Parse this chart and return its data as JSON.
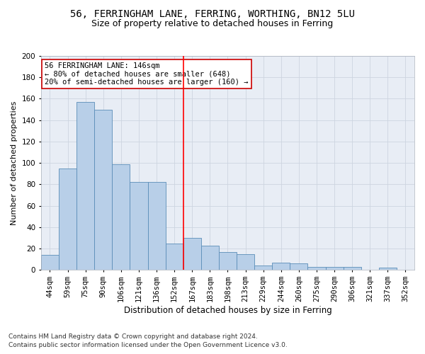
{
  "title1": "56, FERRINGHAM LANE, FERRING, WORTHING, BN12 5LU",
  "title2": "Size of property relative to detached houses in Ferring",
  "xlabel": "Distribution of detached houses by size in Ferring",
  "ylabel": "Number of detached properties",
  "categories": [
    "44sqm",
    "59sqm",
    "75sqm",
    "90sqm",
    "106sqm",
    "121sqm",
    "136sqm",
    "152sqm",
    "167sqm",
    "183sqm",
    "198sqm",
    "213sqm",
    "229sqm",
    "244sqm",
    "260sqm",
    "275sqm",
    "290sqm",
    "306sqm",
    "321sqm",
    "337sqm",
    "352sqm"
  ],
  "values": [
    14,
    95,
    157,
    150,
    99,
    82,
    82,
    25,
    30,
    23,
    17,
    15,
    4,
    7,
    6,
    3,
    3,
    3,
    0,
    2,
    0
  ],
  "bar_color": "#b8cfe8",
  "bar_edge_color": "#5b8db8",
  "vline_x": 7.5,
  "annotation_text": "56 FERRINGHAM LANE: 146sqm\n← 80% of detached houses are smaller (648)\n20% of semi-detached houses are larger (160) →",
  "annotation_box_color": "#ffffff",
  "annotation_box_edge_color": "#cc0000",
  "ylim": [
    0,
    200
  ],
  "yticks": [
    0,
    20,
    40,
    60,
    80,
    100,
    120,
    140,
    160,
    180,
    200
  ],
  "grid_color": "#cdd5e0",
  "background_color": "#e8edf5",
  "footer1": "Contains HM Land Registry data © Crown copyright and database right 2024.",
  "footer2": "Contains public sector information licensed under the Open Government Licence v3.0.",
  "title1_fontsize": 10,
  "title2_fontsize": 9,
  "xlabel_fontsize": 8.5,
  "ylabel_fontsize": 8,
  "tick_fontsize": 7.5,
  "annotation_fontsize": 7.5,
  "footer_fontsize": 6.5
}
